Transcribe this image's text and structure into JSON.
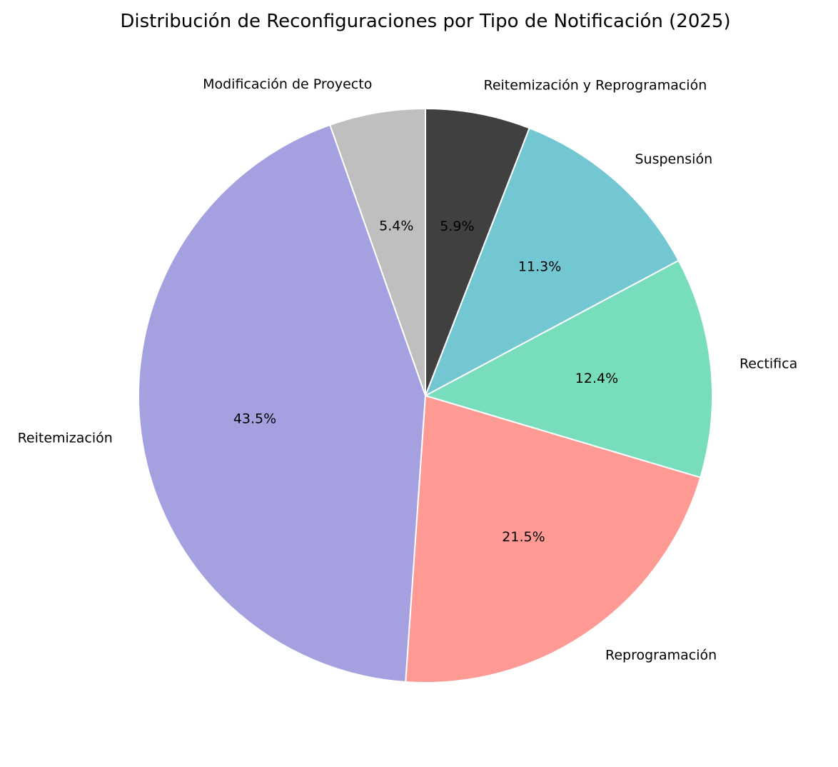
{
  "chart_data": {
    "type": "pie",
    "title": "Distribución de Reconfiguraciones por Tipo de Notificación (2025)",
    "start_angle_deg": 90,
    "direction": "counterclockwise",
    "edge_color": "#ffffff",
    "slices": [
      {
        "label": "Modificación de Proyecto",
        "value": 5.4,
        "pct_label": "5.4%",
        "color": "#bfbfbf"
      },
      {
        "label": "Reitemización",
        "value": 43.5,
        "pct_label": "43.5%",
        "color": "#a5a0e0"
      },
      {
        "label": "Reprogramación",
        "value": 21.5,
        "pct_label": "21.5%",
        "color": "#fe9993"
      },
      {
        "label": "Rectifica",
        "value": 12.4,
        "pct_label": "12.4%",
        "color": "#78ddbc"
      },
      {
        "label": "Suspensión",
        "value": 11.3,
        "pct_label": "11.3%",
        "color": "#72c7d3"
      },
      {
        "label": "Reitemización y Reprogramación",
        "value": 5.9,
        "pct_label": "5.9%",
        "color": "#404040"
      }
    ]
  }
}
